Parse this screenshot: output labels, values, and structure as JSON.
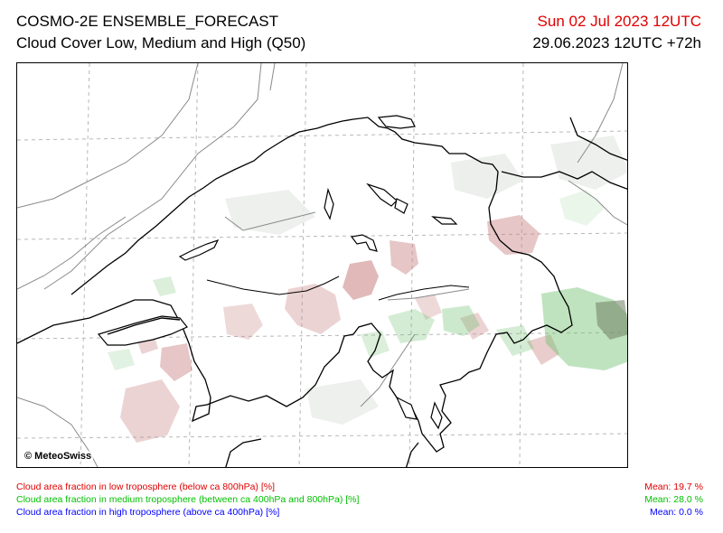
{
  "header": {
    "title": "COSMO-2E ENSEMBLE_FORECAST",
    "subtitle": "Cloud Cover Low, Medium and High (Q50)",
    "valid_time": "Sun 02 Jul 2023 12UTC",
    "run_time": "29.06.2023 12UTC +72h"
  },
  "map": {
    "copyright": "© MeteoSwiss",
    "colors": {
      "low_cloud": "#c88080",
      "medium_cloud": "#70c070",
      "high_cloud": "#0000ff",
      "grid": "#b0b0b0",
      "border": "#000000",
      "river": "#888888"
    }
  },
  "legend": {
    "rows": [
      {
        "label": "Cloud area fraction in low troposphere (below ca 800hPa) [%]",
        "mean": "Mean:  19.7 %",
        "color": "#e00000"
      },
      {
        "label": "Cloud area fraction in medium troposphere (between ca 400hPa and 800hPa) [%]",
        "mean": "Mean:  28.0 %",
        "color": "#00c000"
      },
      {
        "label": "Cloud area fraction in high troposphere (above ca 400hPa) [%]",
        "mean": "Mean:   0.0 %",
        "color": "#0000ff"
      }
    ]
  }
}
